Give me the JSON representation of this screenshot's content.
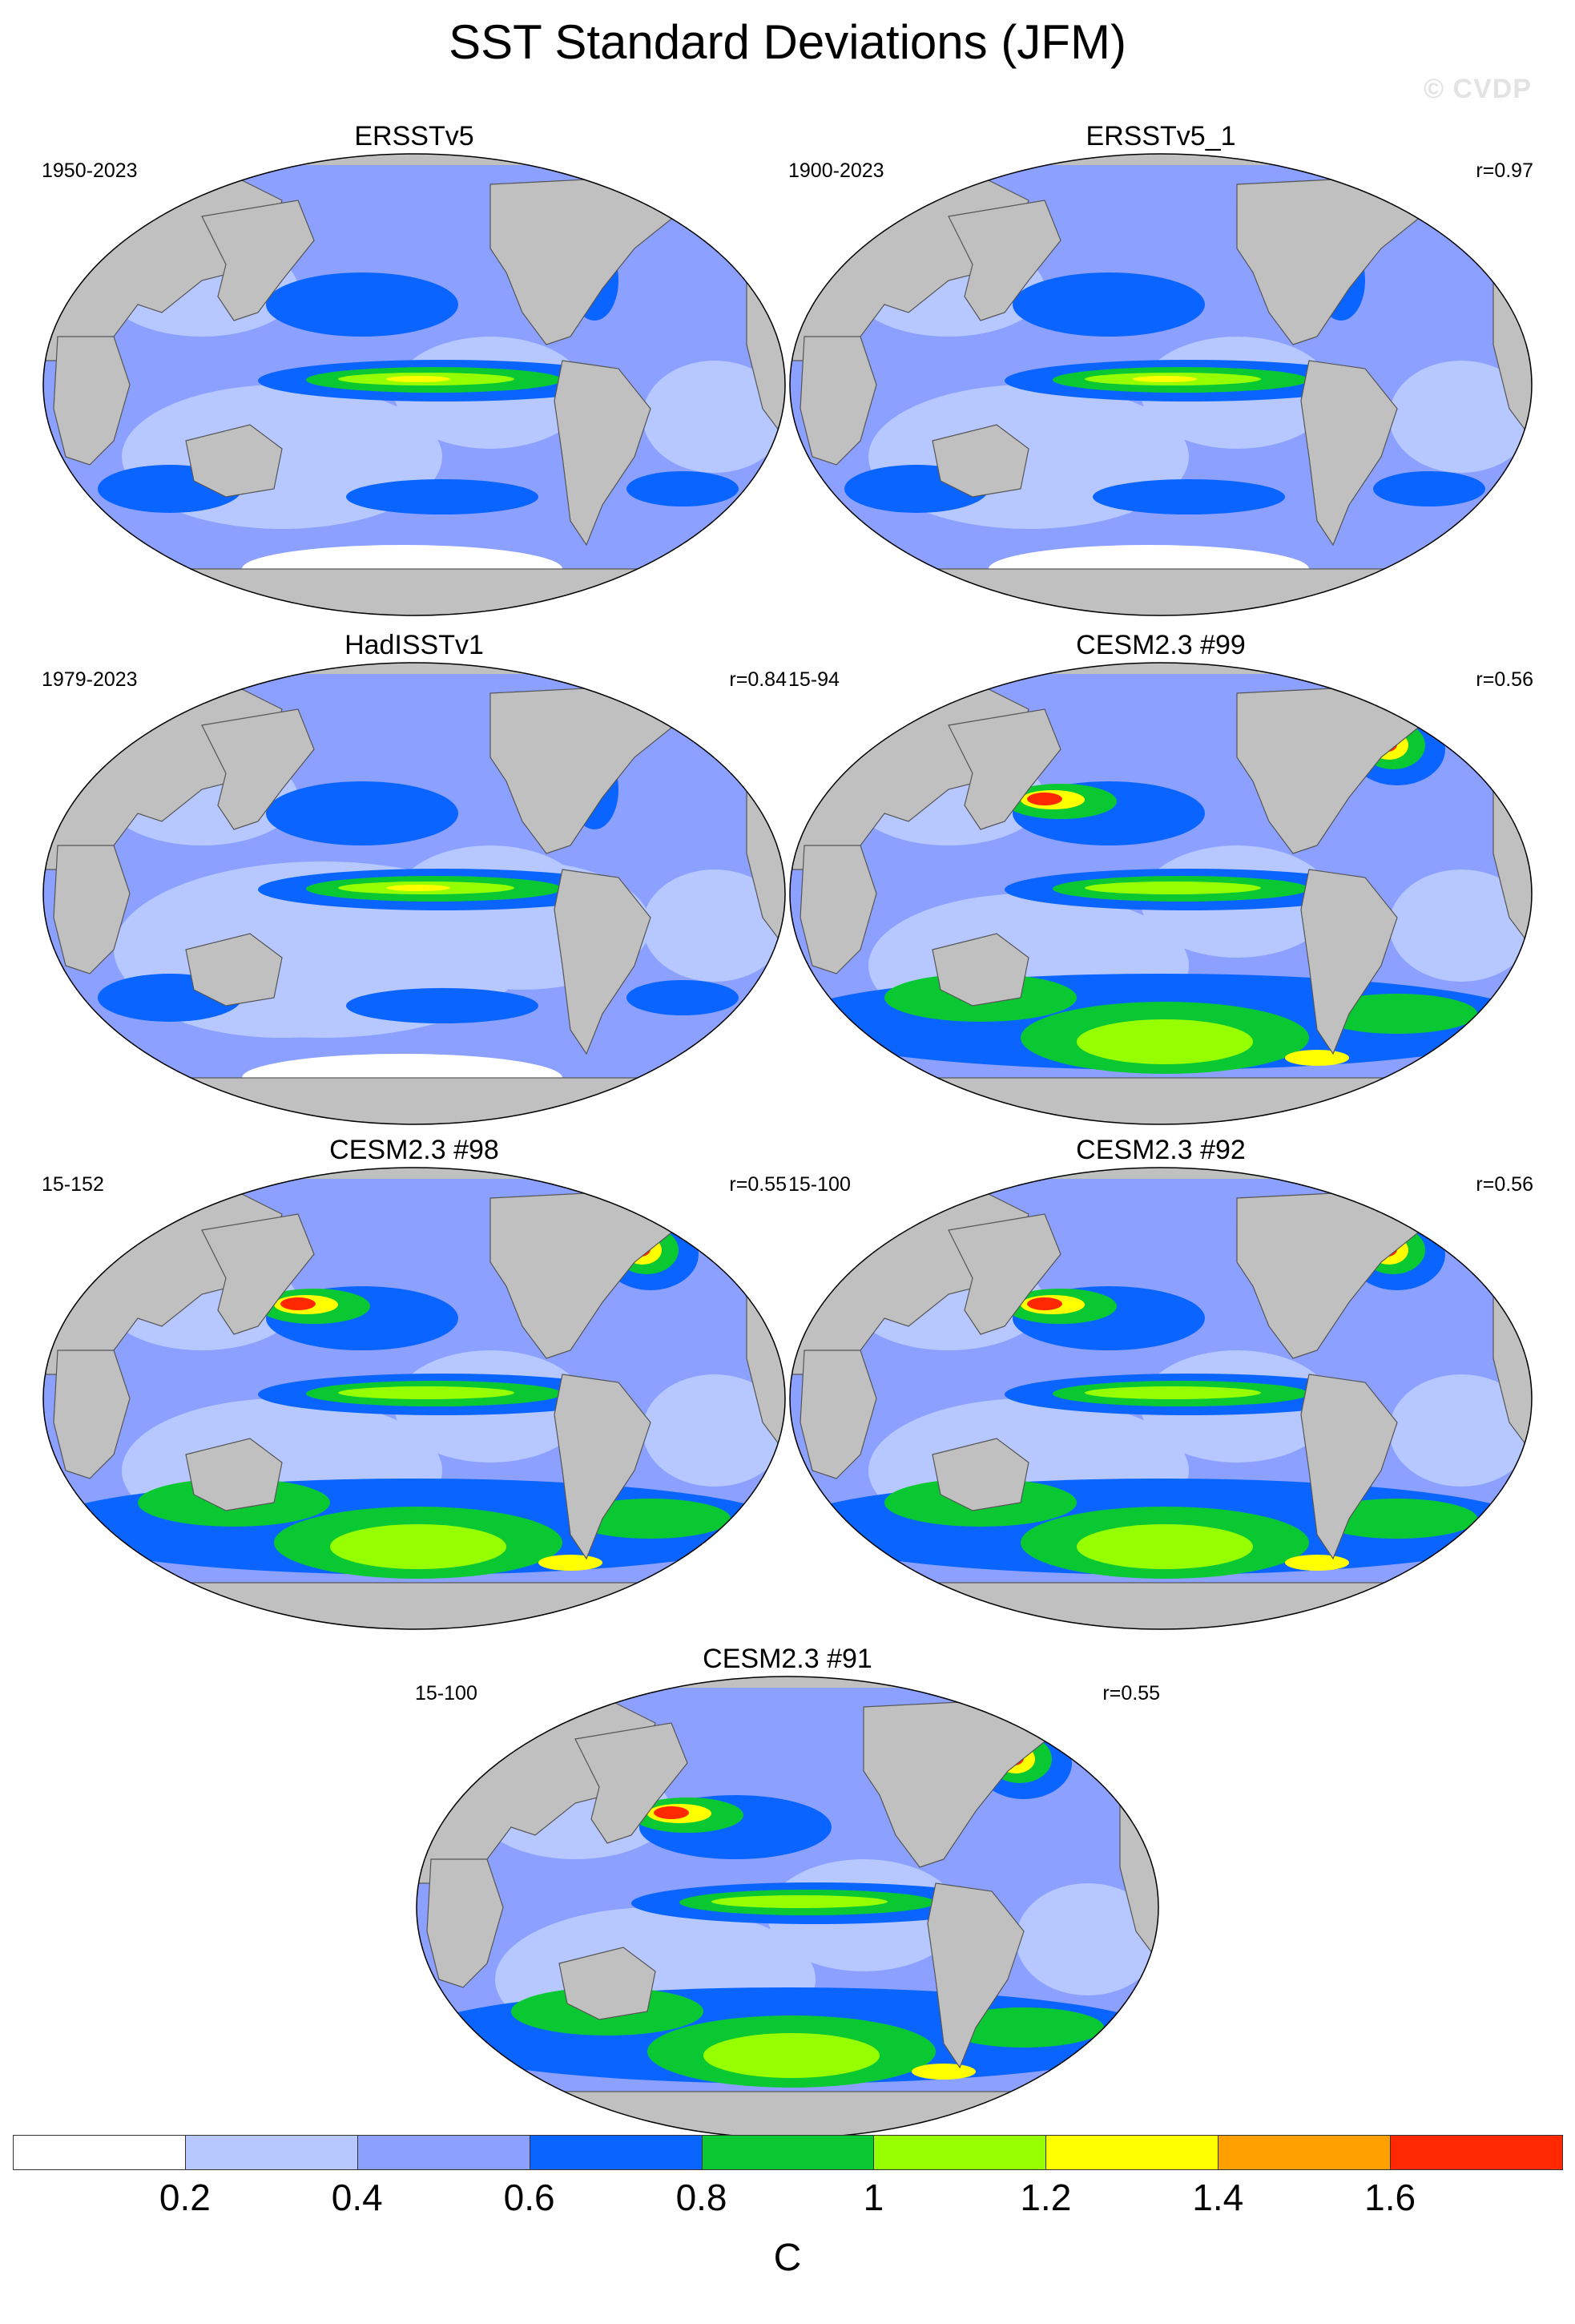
{
  "title": "SST Standard Deviations (JFM)",
  "watermark": "© CVDP",
  "panels": [
    {
      "title": "ERSSTv5",
      "period": "1950-2023",
      "corr": ""
    },
    {
      "title": "ERSSTv5_1",
      "period": "1900-2023",
      "corr": "r=0.97"
    },
    {
      "title": "HadISSTv1",
      "period": "1979-2023",
      "corr": "r=0.84"
    },
    {
      "title": "CESM2.3 #99",
      "period": "15-94",
      "corr": "r=0.56"
    },
    {
      "title": "CESM2.3 #98",
      "period": "15-152",
      "corr": "r=0.55"
    },
    {
      "title": "CESM2.3 #92",
      "period": "15-100",
      "corr": "r=0.56"
    },
    {
      "title": "CESM2.3 #91",
      "period": "15-100",
      "corr": "r=0.55"
    }
  ],
  "colorbar": {
    "colors": [
      "#ffffff",
      "#b6c8ff",
      "#8ca0ff",
      "#0a64ff",
      "#0ac832",
      "#96ff00",
      "#ffff00",
      "#ffa000",
      "#ff2800"
    ],
    "labels": [
      "0.2",
      "0.4",
      "0.6",
      "0.8",
      "1",
      "1.2",
      "1.4",
      "1.6"
    ],
    "units": "C"
  },
  "colors": {
    "land": "#c0c0c0",
    "ocean_low": "#b6c8ff",
    "ocean_mid": "#8ca0ff",
    "ocean_high": "#0a64ff",
    "green": "#0ac832",
    "yellow_green": "#96ff00",
    "yellow": "#ffff00",
    "orange": "#ffa000",
    "red": "#ff2800"
  }
}
